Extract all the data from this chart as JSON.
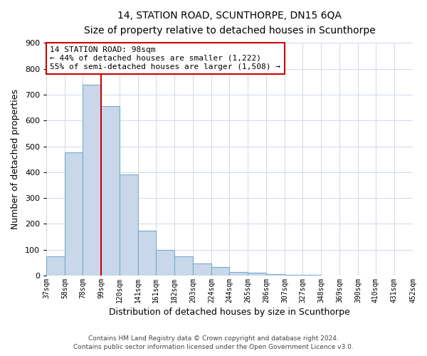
{
  "title": "14, STATION ROAD, SCUNTHORPE, DN15 6QA",
  "subtitle": "Size of property relative to detached houses in Scunthorpe",
  "xlabel": "Distribution of detached houses by size in Scunthorpe",
  "ylabel": "Number of detached properties",
  "bar_values": [
    75,
    478,
    738,
    655,
    392,
    175,
    98,
    75,
    46,
    33,
    15,
    10,
    5,
    3,
    2,
    1
  ],
  "bin_edges": [
    37,
    58,
    78,
    99,
    120,
    141,
    161,
    182,
    203,
    224,
    244,
    265,
    286,
    307,
    327,
    348,
    369,
    390,
    410,
    431,
    452
  ],
  "bin_labels": [
    "37sqm",
    "58sqm",
    "78sqm",
    "99sqm",
    "120sqm",
    "141sqm",
    "161sqm",
    "182sqm",
    "203sqm",
    "224sqm",
    "244sqm",
    "265sqm",
    "286sqm",
    "307sqm",
    "327sqm",
    "348sqm",
    "369sqm",
    "390sqm",
    "410sqm",
    "431sqm",
    "452sqm"
  ],
  "bar_color": "#c8d8ea",
  "bar_edge_color": "#7aaac8",
  "property_line_x": 99,
  "property_line_color": "#cc0000",
  "ylim": [
    0,
    900
  ],
  "yticks": [
    0,
    100,
    200,
    300,
    400,
    500,
    600,
    700,
    800,
    900
  ],
  "annotation_title": "14 STATION ROAD: 98sqm",
  "annotation_line1": "← 44% of detached houses are smaller (1,222)",
  "annotation_line2": "55% of semi-detached houses are larger (1,508) →",
  "annotation_box_color": "#cc0000",
  "footer_line1": "Contains HM Land Registry data © Crown copyright and database right 2024.",
  "footer_line2": "Contains public sector information licensed under the Open Government Licence v3.0.",
  "bg_color": "#ffffff",
  "grid_color": "#d0d8e8"
}
